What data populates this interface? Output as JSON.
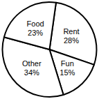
{
  "chart_data": {
    "type": "pie",
    "categories": [
      "Rent",
      "Fun",
      "Other",
      "Food"
    ],
    "values": [
      28,
      15,
      34,
      23
    ],
    "value_labels": [
      "28%",
      "15%",
      "34%",
      "23%"
    ],
    "color": "#ffffff",
    "data_labels": true
  }
}
